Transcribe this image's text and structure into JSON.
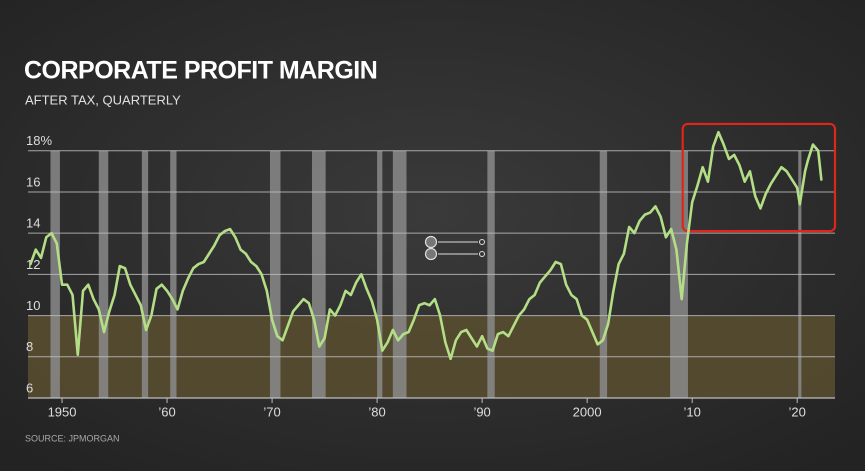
{
  "chart_data": {
    "type": "line",
    "title": "CORPORATE PROFIT MARGIN",
    "subtitle": "AFTER TAX, QUARTERLY",
    "source": "SOURCE: JPMORGAN",
    "xlim": [
      1946.76,
      2023.6
    ],
    "ylim": [
      6,
      19.2
    ],
    "xticks": [
      1950,
      {
        "value": 1960,
        "label": "’60"
      },
      {
        "value": 1970,
        "label": "’70"
      },
      {
        "value": 1980,
        "label": "’80"
      },
      {
        "value": 1990,
        "label": "’90"
      },
      2000,
      {
        "value": 2010,
        "label": "’10"
      },
      {
        "value": 2020,
        "label": "’20"
      }
    ],
    "yticks": [
      6,
      8,
      10,
      12,
      14,
      16,
      {
        "value": 18,
        "label": "18%"
      }
    ],
    "grid": true,
    "recessions": [
      [
        1948.9,
        1949.8
      ],
      [
        1953.5,
        1954.4
      ],
      [
        1957.6,
        1958.2
      ],
      [
        1960.3,
        1960.9
      ],
      [
        1969.8,
        1970.8
      ],
      [
        1973.8,
        1975.1
      ],
      [
        1980.0,
        1980.5
      ],
      [
        1981.5,
        1982.8
      ],
      [
        1990.5,
        1991.2
      ],
      [
        2001.2,
        2001.9
      ],
      [
        2007.9,
        2009.6
      ],
      [
        2020.1,
        2020.4
      ]
    ],
    "recession_color": "#8a8a8a",
    "shaded_band": [
      6,
      10
    ],
    "shaded_band_color": "#574c2f",
    "highlight": {
      "x": [
        2009.1,
        2023.6
      ],
      "y": [
        14.1,
        19.3
      ],
      "color": "#e0251b"
    },
    "x": [
      1947.0,
      1947.5,
      1948.0,
      1948.5,
      1949.0,
      1949.5,
      1950.0,
      1950.5,
      1951.0,
      1951.5,
      1952.0,
      1952.5,
      1953.0,
      1953.5,
      1954.0,
      1954.5,
      1955.0,
      1955.5,
      1956.0,
      1956.5,
      1957.0,
      1957.5,
      1958.0,
      1958.5,
      1959.0,
      1959.5,
      1960.0,
      1960.5,
      1961.0,
      1961.5,
      1962.0,
      1962.5,
      1963.0,
      1963.5,
      1964.0,
      1964.5,
      1965.0,
      1965.5,
      1966.0,
      1966.5,
      1967.0,
      1967.5,
      1968.0,
      1968.5,
      1969.0,
      1969.5,
      1970.0,
      1970.5,
      1971.0,
      1971.5,
      1972.0,
      1972.5,
      1973.0,
      1973.5,
      1974.0,
      1974.5,
      1975.0,
      1975.5,
      1976.0,
      1976.5,
      1977.0,
      1977.5,
      1978.0,
      1978.5,
      1979.0,
      1979.5,
      1980.0,
      1980.5,
      1981.0,
      1981.5,
      1982.0,
      1982.5,
      1983.0,
      1983.5,
      1984.0,
      1984.5,
      1985.0,
      1985.5,
      1986.0,
      1986.5,
      1987.0,
      1987.5,
      1988.0,
      1988.5,
      1989.0,
      1989.5,
      1990.0,
      1990.5,
      1991.0,
      1991.5,
      1992.0,
      1992.5,
      1993.0,
      1993.5,
      1994.0,
      1994.5,
      1995.0,
      1995.5,
      1996.0,
      1996.5,
      1997.0,
      1997.5,
      1998.0,
      1998.5,
      1999.0,
      1999.5,
      2000.0,
      2000.5,
      2001.0,
      2001.5,
      2002.0,
      2002.5,
      2003.0,
      2003.5,
      2004.0,
      2004.5,
      2005.0,
      2005.5,
      2006.0,
      2006.5,
      2007.0,
      2007.5,
      2008.0,
      2008.5,
      2009.0,
      2009.5,
      2010.0,
      2010.5,
      2011.0,
      2011.5,
      2012.0,
      2012.5,
      2013.0,
      2013.5,
      2014.0,
      2014.5,
      2015.0,
      2015.5,
      2016.0,
      2016.5,
      2017.0,
      2017.5,
      2018.0,
      2018.5,
      2019.0,
      2019.5,
      2020.0,
      2020.25,
      2020.75,
      2021.0,
      2021.5,
      2022.0,
      2022.3
    ],
    "series": [
      {
        "color": "#b4de86",
        "values": [
          12.5,
          13.2,
          12.8,
          13.8,
          14.0,
          13.5,
          11.5,
          11.5,
          11.0,
          8.1,
          11.2,
          11.5,
          10.8,
          10.3,
          9.2,
          10.2,
          11.0,
          12.4,
          12.3,
          11.5,
          11.0,
          10.5,
          9.3,
          10.0,
          11.3,
          11.5,
          11.2,
          10.8,
          10.3,
          11.2,
          11.8,
          12.3,
          12.5,
          12.6,
          13.0,
          13.4,
          13.9,
          14.1,
          14.2,
          13.8,
          13.2,
          13.0,
          12.6,
          12.4,
          12.0,
          11.2,
          9.8,
          9.0,
          8.8,
          9.5,
          10.2,
          10.5,
          10.8,
          10.6,
          9.8,
          8.5,
          8.9,
          10.3,
          10.0,
          10.5,
          11.2,
          11.0,
          11.6,
          12.0,
          11.3,
          10.7,
          9.8,
          8.3,
          8.7,
          9.3,
          8.8,
          9.1,
          9.2,
          9.8,
          10.5,
          10.6,
          10.5,
          10.8,
          10.0,
          8.7,
          7.9,
          8.8,
          9.2,
          9.3,
          8.9,
          8.5,
          9.0,
          8.4,
          8.3,
          9.1,
          9.2,
          9.0,
          9.5,
          10.0,
          10.3,
          10.8,
          11.0,
          11.6,
          11.9,
          12.2,
          12.6,
          12.5,
          11.5,
          11.0,
          10.8,
          10.0,
          9.8,
          9.2,
          8.6,
          8.8,
          9.6,
          11.2,
          12.5,
          13.0,
          14.3,
          14.0,
          14.6,
          14.9,
          15.0,
          15.3,
          14.8,
          13.8,
          14.2,
          13.2,
          10.8,
          13.5,
          15.5,
          16.3,
          17.2,
          16.5,
          18.2,
          18.9,
          18.3,
          17.6,
          17.8,
          17.3,
          16.5,
          17.0,
          15.8,
          15.2,
          15.9,
          16.4,
          16.8,
          17.2,
          17.0,
          16.6,
          16.2,
          15.4,
          17.0,
          17.5,
          18.3,
          18.0,
          16.6
        ]
      }
    ]
  }
}
